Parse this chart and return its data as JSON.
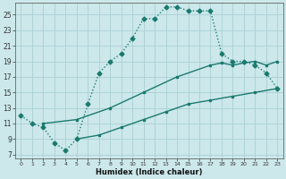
{
  "bg_color": "#cce8eb",
  "grid_color": "#aacfd4",
  "line_color": "#1a7a6e",
  "xlabel": "Humidex (Indice chaleur)",
  "yticks": [
    7,
    9,
    11,
    13,
    15,
    17,
    19,
    21,
    23,
    25
  ],
  "xticks": [
    0,
    1,
    2,
    3,
    4,
    5,
    6,
    7,
    8,
    9,
    10,
    11,
    12,
    13,
    14,
    15,
    16,
    17,
    18,
    19,
    20,
    21,
    22,
    23
  ],
  "xlim": [
    -0.5,
    23.5
  ],
  "ylim": [
    6.5,
    26.5
  ],
  "curve1_x": [
    0,
    1,
    2,
    3,
    4,
    5,
    6,
    7,
    8,
    9,
    10,
    11,
    12,
    13,
    14,
    15,
    16,
    17,
    18,
    19,
    20,
    21,
    22,
    23
  ],
  "curve1_y": [
    12.0,
    11.0,
    10.5,
    8.5,
    7.5,
    9.0,
    13.5,
    17.5,
    19.0,
    20.0,
    22.0,
    24.5,
    24.5,
    26.0,
    26.0,
    25.5,
    25.5,
    25.5,
    20.0,
    19.0,
    19.0,
    18.5,
    17.5,
    15.5
  ],
  "curve2_x": [
    2,
    5,
    8,
    11,
    14,
    17,
    18,
    19,
    20,
    21,
    22,
    23
  ],
  "curve2_y": [
    11.0,
    11.5,
    13.0,
    15.0,
    17.0,
    18.5,
    18.8,
    18.5,
    18.8,
    19.0,
    18.5,
    19.0
  ],
  "curve3_x": [
    5,
    7,
    9,
    11,
    13,
    15,
    17,
    19,
    21,
    23
  ],
  "curve3_y": [
    9.0,
    9.5,
    10.5,
    11.5,
    12.5,
    13.5,
    14.0,
    14.5,
    15.0,
    15.5
  ]
}
